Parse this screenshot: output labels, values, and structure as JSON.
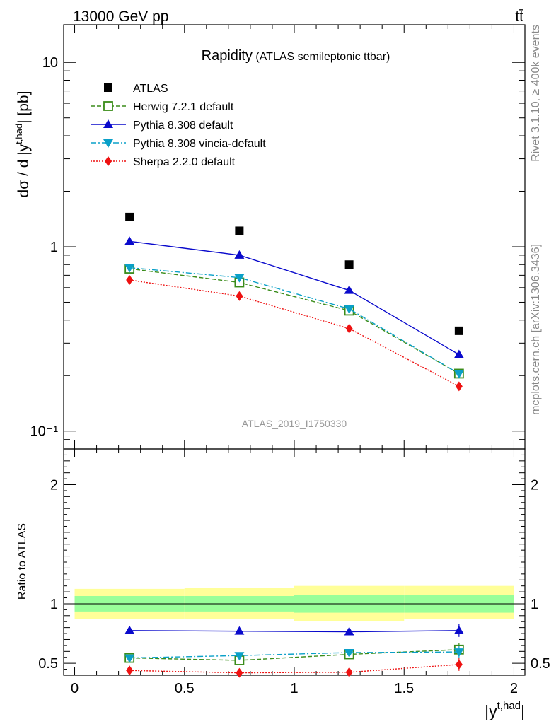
{
  "header": {
    "left": "13000 GeV pp",
    "right": "tt̄"
  },
  "side": {
    "rivet": "Rivet 3.1.10, ≥ 400k events",
    "mcplots": "mcplots.cern.ch [arXiv:1306.3436]"
  },
  "title": {
    "main": "Rapidity",
    "sub": "(ATLAS semileptonic ttbar)"
  },
  "watermark": "ATLAS_2019_I1750330",
  "chart_data": [
    {
      "type": "scatter",
      "yscale": "log",
      "ylabel": "dσ / d |y^{t,had}| [pb]",
      "ylim": [
        0.08,
        16
      ],
      "xlim": [
        -0.05,
        2.05
      ],
      "y_tick_labels": [
        "10",
        "1",
        "10⁻¹"
      ],
      "x": [
        0.25,
        0.75,
        1.25,
        1.75
      ],
      "series": [
        {
          "name": "ATLAS",
          "color": "#000000",
          "marker": "square",
          "values": [
            1.45,
            1.22,
            0.8,
            0.35
          ]
        },
        {
          "name": "Herwig 7.2.1 default",
          "color": "#3a8c1a",
          "marker": "open-square",
          "line": "dashed",
          "values": [
            0.76,
            0.64,
            0.45,
            0.205
          ]
        },
        {
          "name": "Pythia 8.308 default",
          "color": "#0a0acc",
          "marker": "triangle-up",
          "line": "solid",
          "values": [
            1.07,
            0.9,
            0.58,
            0.26
          ]
        },
        {
          "name": "Pythia 8.308 vincia-default",
          "color": "#0aa0c8",
          "marker": "triangle-down",
          "line": "dashdot",
          "values": [
            0.77,
            0.68,
            0.46,
            0.205
          ]
        },
        {
          "name": "Sherpa 2.2.0 default",
          "color": "#ee1111",
          "marker": "diamond",
          "line": "dotted",
          "values": [
            0.66,
            0.54,
            0.36,
            0.175
          ]
        }
      ]
    },
    {
      "type": "line",
      "ylabel": "Ratio to ATLAS",
      "xlabel": "|y^{t,had}|",
      "ylim": [
        0.4,
        2.3
      ],
      "xlim": [
        -0.05,
        2.05
      ],
      "x_ticks": [
        0,
        0.5,
        1,
        1.5,
        2
      ],
      "x_tick_labels": [
        "0",
        "0.5",
        "1",
        "1.5",
        "2"
      ],
      "y_ticks": [
        0.5,
        1,
        2
      ],
      "y_tick_labels": [
        "0.5",
        "1",
        "2"
      ],
      "x": [
        0.25,
        0.75,
        1.25,
        1.75
      ],
      "bands": {
        "bins": [
          [
            0,
            0.5
          ],
          [
            0.5,
            1
          ],
          [
            1,
            1.5
          ],
          [
            1.5,
            2
          ]
        ],
        "stat": [
          [
            0.935,
            1.065
          ],
          [
            0.935,
            1.065
          ],
          [
            0.925,
            1.075
          ],
          [
            0.925,
            1.075
          ]
        ],
        "total": [
          [
            0.875,
            1.125
          ],
          [
            0.875,
            1.135
          ],
          [
            0.855,
            1.15
          ],
          [
            0.875,
            1.15
          ]
        ]
      },
      "series": [
        {
          "name": "Herwig 7.2.1 default",
          "values": [
            0.545,
            0.525,
            0.575,
            0.615
          ]
        },
        {
          "name": "Pythia 8.308 default",
          "values": [
            0.775,
            0.77,
            0.765,
            0.775
          ]
        },
        {
          "name": "Pythia 8.308 vincia-default",
          "values": [
            0.545,
            0.565,
            0.59,
            0.595
          ]
        },
        {
          "name": "Sherpa 2.2.0 default",
          "values": [
            0.44,
            0.42,
            0.425,
            0.49
          ]
        }
      ]
    }
  ]
}
